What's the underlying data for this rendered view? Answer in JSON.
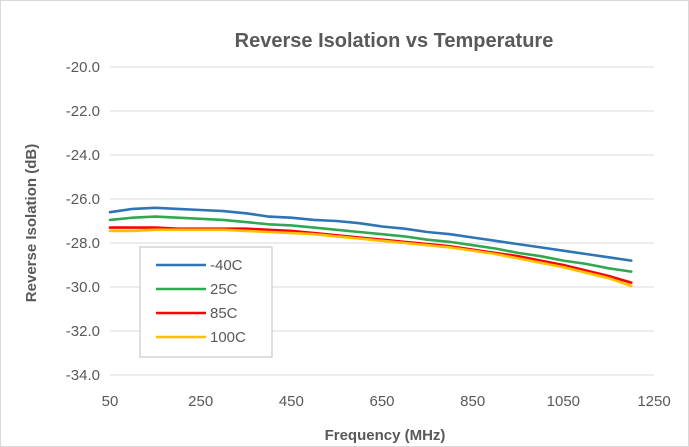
{
  "chart_data": {
    "type": "line",
    "title": "Reverse Isolation vs Temperature",
    "xlabel": "Frequency (MHz)",
    "ylabel": "Reverse Isolation (dB)",
    "xlim": [
      50,
      1250
    ],
    "ylim": [
      -34,
      -20
    ],
    "x_ticks": [
      "50",
      "250",
      "450",
      "650",
      "850",
      "1050",
      "1250"
    ],
    "y_ticks": [
      "-20.0",
      "-22.0",
      "-24.0",
      "-26.0",
      "-28.0",
      "-30.0",
      "-32.0",
      "-34.0"
    ],
    "grid": "horizontal",
    "legend_position": "bottom-left inside plot",
    "x": [
      50,
      100,
      150,
      200,
      250,
      300,
      350,
      400,
      450,
      500,
      550,
      600,
      650,
      700,
      750,
      800,
      850,
      900,
      950,
      1000,
      1050,
      1100,
      1150,
      1200
    ],
    "series": [
      {
        "name": "-40C",
        "color": "#2e75b6",
        "values": [
          -26.6,
          -26.45,
          -26.4,
          -26.45,
          -26.5,
          -26.55,
          -26.65,
          -26.8,
          -26.85,
          -26.95,
          -27.0,
          -27.1,
          -27.25,
          -27.35,
          -27.5,
          -27.6,
          -27.75,
          -27.9,
          -28.05,
          -28.2,
          -28.35,
          -28.5,
          -28.65,
          -28.8
        ]
      },
      {
        "name": "25C",
        "color": "#2fa84f",
        "values": [
          -26.95,
          -26.85,
          -26.8,
          -26.85,
          -26.9,
          -26.95,
          -27.05,
          -27.15,
          -27.2,
          -27.3,
          -27.4,
          -27.5,
          -27.6,
          -27.7,
          -27.85,
          -27.95,
          -28.1,
          -28.25,
          -28.45,
          -28.6,
          -28.8,
          -28.95,
          -29.15,
          -29.3
        ]
      },
      {
        "name": "85C",
        "color": "#ff0000",
        "values": [
          -27.3,
          -27.3,
          -27.3,
          -27.35,
          -27.35,
          -27.35,
          -27.35,
          -27.4,
          -27.45,
          -27.55,
          -27.65,
          -27.75,
          -27.85,
          -27.95,
          -28.05,
          -28.15,
          -28.3,
          -28.45,
          -28.6,
          -28.8,
          -29.0,
          -29.25,
          -29.5,
          -29.8
        ]
      },
      {
        "name": "100C",
        "color": "#ffc000",
        "values": [
          -27.45,
          -27.45,
          -27.4,
          -27.4,
          -27.4,
          -27.4,
          -27.45,
          -27.5,
          -27.55,
          -27.6,
          -27.7,
          -27.8,
          -27.9,
          -28.0,
          -28.1,
          -28.2,
          -28.35,
          -28.5,
          -28.7,
          -28.9,
          -29.1,
          -29.35,
          -29.6,
          -29.95
        ]
      }
    ]
  }
}
